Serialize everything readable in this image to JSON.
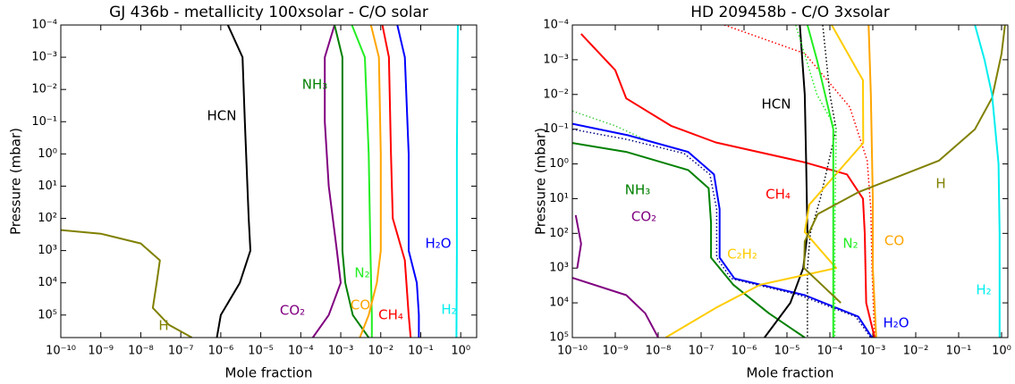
{
  "chart_data": [
    {
      "type": "line",
      "title": "GJ 436b - metallicity 100xsolar - C/O solar",
      "xlabel": "Mole fraction",
      "ylabel": "Pressure (mbar)",
      "xscale": "log",
      "yscale": "log",
      "y_inverted": true,
      "xlim": [
        1e-10,
        2.5
      ],
      "ylim": [
        0.0001,
        500000
      ],
      "xticks": [
        {
          "value": 1e-10,
          "label": "10⁻¹⁰"
        },
        {
          "value": 1e-09,
          "label": "10⁻⁹"
        },
        {
          "value": 1e-08,
          "label": "10⁻⁸"
        },
        {
          "value": 1e-07,
          "label": "10⁻⁷"
        },
        {
          "value": 1e-06,
          "label": "10⁻⁶"
        },
        {
          "value": 1e-05,
          "label": "10⁻⁵"
        },
        {
          "value": 0.0001,
          "label": "10⁻⁴"
        },
        {
          "value": 0.001,
          "label": "10⁻³"
        },
        {
          "value": 0.01,
          "label": "10⁻²"
        },
        {
          "value": 0.1,
          "label": "10⁻¹"
        },
        {
          "value": 1,
          "label": "10⁰"
        }
      ],
      "yticks": [
        {
          "value": 0.0001,
          "label": "10⁻⁴"
        },
        {
          "value": 0.001,
          "label": "10⁻³"
        },
        {
          "value": 0.01,
          "label": "10⁻²"
        },
        {
          "value": 0.1,
          "label": "10⁻¹"
        },
        {
          "value": 1,
          "label": "10⁰"
        },
        {
          "value": 10,
          "label": "10¹"
        },
        {
          "value": 100,
          "label": "10²"
        },
        {
          "value": 1000,
          "label": "10³"
        },
        {
          "value": 10000,
          "label": "10⁴"
        },
        {
          "value": 100000,
          "label": "10⁵"
        }
      ],
      "series": [
        {
          "name": "H",
          "color": "#808000",
          "x": [
            1e-10,
            1e-09,
            1e-08,
            3e-08,
            2.5e-08,
            2e-08,
            5e-08,
            1.9e-07
          ],
          "values": [
            230,
            300,
            600,
            2000,
            10000,
            60000,
            200000,
            500000
          ]
        },
        {
          "name": "HCN",
          "color": "#000000",
          "x": [
            1.5e-06,
            3.5e-06,
            4e-06,
            5e-06,
            5.5e-06,
            3e-06,
            1e-06,
            8e-07
          ],
          "values": [
            0.0001,
            0.001,
            0.1,
            100,
            1000,
            10000,
            100000,
            500000
          ]
        },
        {
          "name": "CO₂",
          "color": "#800080",
          "x": [
            0.0007,
            0.0004,
            0.0004,
            0.0005,
            0.0008,
            0.001,
            0.0005,
            0.0002
          ],
          "values": [
            0.0001,
            0.001,
            0.1,
            10,
            1000,
            10000,
            100000,
            500000
          ]
        },
        {
          "name": "NH₃",
          "color": "#008000",
          "x": [
            0.0007,
            0.0011,
            0.0011,
            0.0011,
            0.0013,
            0.002,
            0.005
          ],
          "values": [
            0.0001,
            0.001,
            1,
            1000,
            10000,
            100000,
            500000
          ]
        },
        {
          "name": "N₂",
          "color": "#22ee22",
          "x": [
            0.0019,
            0.004,
            0.005,
            0.0055,
            0.006,
            0.006
          ],
          "values": [
            0.0001,
            0.001,
            1,
            1000,
            100000,
            500000
          ]
        },
        {
          "name": "CO",
          "color": "#ffa500",
          "x": [
            0.0057,
            0.009,
            0.01,
            0.01,
            0.008,
            0.005,
            0.003
          ],
          "values": [
            0.0001,
            0.001,
            1,
            1000,
            10000,
            100000,
            500000
          ]
        },
        {
          "name": "CH₄",
          "color": "#ff0000",
          "x": [
            0.011,
            0.016,
            0.018,
            0.02,
            0.04,
            0.05,
            0.056
          ],
          "values": [
            0.0001,
            0.001,
            1,
            100,
            2000,
            100000,
            500000
          ]
        },
        {
          "name": "H₂O",
          "color": "#0000ff",
          "x": [
            0.026,
            0.04,
            0.05,
            0.05,
            0.08,
            0.09,
            0.09
          ],
          "values": [
            0.0001,
            0.001,
            1,
            1000,
            10000,
            100000,
            500000
          ]
        },
        {
          "name": "H₂",
          "color": "#00eeee",
          "x": [
            0.85,
            0.8,
            0.8,
            0.78
          ],
          "values": [
            0.0001,
            1,
            1000,
            500000
          ]
        }
      ]
    },
    {
      "type": "line",
      "title": "HD 209458b - C/O  3xsolar",
      "xlabel": "Mole fraction",
      "ylabel": "Pressure (mbar)",
      "xscale": "log",
      "yscale": "log",
      "y_inverted": true,
      "xlim": [
        1e-10,
        1.4
      ],
      "ylim": [
        0.0001,
        100000
      ],
      "xticks": [
        {
          "value": 1e-10,
          "label": "10⁻¹⁰"
        },
        {
          "value": 1e-09,
          "label": "10⁻⁹"
        },
        {
          "value": 1e-08,
          "label": "10⁻⁸"
        },
        {
          "value": 1e-07,
          "label": "10⁻⁷"
        },
        {
          "value": 1e-06,
          "label": "10⁻⁶"
        },
        {
          "value": 1e-05,
          "label": "10⁻⁵"
        },
        {
          "value": 0.0001,
          "label": "10⁻⁴"
        },
        {
          "value": 0.001,
          "label": "10⁻³"
        },
        {
          "value": 0.01,
          "label": "10⁻²"
        },
        {
          "value": 0.1,
          "label": "10⁻¹"
        },
        {
          "value": 1,
          "label": "10⁰"
        }
      ],
      "yticks": [
        {
          "value": 0.0001,
          "label": "10⁻⁴"
        },
        {
          "value": 0.001,
          "label": "10⁻³"
        },
        {
          "value": 0.01,
          "label": "10⁻²"
        },
        {
          "value": 0.1,
          "label": "10⁻¹"
        },
        {
          "value": 1,
          "label": "10⁰"
        },
        {
          "value": 10,
          "label": "10¹"
        },
        {
          "value": 100,
          "label": "10²"
        },
        {
          "value": 1000,
          "label": "10³"
        },
        {
          "value": 10000,
          "label": "10⁴"
        },
        {
          "value": 100000,
          "label": "10⁵"
        }
      ],
      "series": [
        {
          "name": "CO₂",
          "color": "#800080",
          "x": [
            1.2e-10,
            1.6e-10,
            1.3e-10,
            null,
            1e-10,
            1.8e-09,
            5e-09,
            1e-08
          ],
          "values": [
            30,
            200,
            1000,
            null,
            1900,
            6000,
            20000,
            100000
          ]
        },
        {
          "name": "NH₃",
          "color": "#008000",
          "x": [
            1e-10,
            1.8e-09,
            5e-08,
            1.5e-07,
            1.7e-07,
            1.7e-07,
            5.6e-07,
            3.8e-06,
            2.6e-05
          ],
          "values": [
            0.25,
            0.45,
            1.5,
            5,
            50,
            500,
            3000,
            20000,
            100000
          ]
        },
        {
          "color": "#44cc44",
          "dash": "dotted",
          "x": [
            1e-10,
            1e-09,
            5e-09
          ],
          "values": [
            0.03,
            0.08,
            0.2
          ]
        },
        {
          "name": "H₂O",
          "color": "#0000ff",
          "x": [
            1e-10,
            2e-09,
            5e-08,
            2e-07,
            2.7e-07,
            2.7e-07,
            6e-07,
            2.6e-05,
            0.00046,
            0.00096
          ],
          "values": [
            0.07,
            0.15,
            0.45,
            2,
            20,
            500,
            2000,
            6000,
            25000,
            100000
          ]
        },
        {
          "color": "#000080",
          "dash": "dotted",
          "x": [
            1e-10,
            2e-09,
            4e-08,
            1.6e-07,
            2.3e-07,
            2.3e-07,
            5e-07,
            2e-05,
            0.0004,
            0.0009
          ],
          "values": [
            0.1,
            0.2,
            0.5,
            2,
            20,
            500,
            2000,
            6000,
            25000,
            100000
          ]
        },
        {
          "name": "CH₄",
          "color": "#ff0000",
          "x": [
            1.6e-10,
            1e-09,
            1.8e-09,
            2e-08,
            2.2e-07,
            2.6e-05,
            0.00025,
            0.00059,
            0.00065,
            0.0007,
            0.0011
          ],
          "values": [
            0.00018,
            0.002,
            0.013,
            0.08,
            0.24,
            0.9,
            2,
            10,
            100,
            10000,
            100000
          ]
        },
        {
          "color": "#ff0000",
          "dash": "dotted",
          "x": [
            3.5e-07,
            2.6e-05,
            0.00029,
            0.00074,
            0.0009,
            0.00096,
            0.0011
          ],
          "values": [
            0.0001,
            0.00066,
            0.023,
            0.8,
            20,
            1000,
            100000
          ]
        },
        {
          "name": "HCN",
          "color": "#000000",
          "x": [
            2e-05,
            2.6e-05,
            2.8e-05,
            3e-05,
            2.4e-05,
            1.2e-05,
            3e-06
          ],
          "values": [
            0.0001,
            0.01,
            1,
            100,
            1000,
            10000,
            100000
          ]
        },
        {
          "color": "#000000",
          "dash": "dotted",
          "x": [
            6.8e-05,
            0.0001,
            0.00014,
            6e-05,
            3.5e-05,
            3e-05,
            3e-05
          ],
          "values": [
            0.0001,
            0.01,
            0.1,
            10,
            100,
            1000,
            100000
          ]
        },
        {
          "name": "C₂H₂",
          "color": "#ffcc00",
          "x": [
            0.00011,
            0.00059,
            0.0006,
            3.3e-05,
            2.6e-05,
            6e-05,
            0.00014,
            2.4e-06,
            2.2e-07,
            1.5e-08
          ],
          "values": [
            0.0001,
            0.0039,
            0.25,
            15,
            91,
            300,
            1000,
            3000,
            14000,
            100000
          ]
        },
        {
          "name": "N₂",
          "color": "#22ee22",
          "x": [
            3e-05,
            5e-05,
            0.00012,
            0.00012,
            0.00012
          ],
          "values": [
            0.0001,
            0.001,
            0.1,
            100,
            100000
          ]
        },
        {
          "color": "#22ee22",
          "dash": "dotted",
          "x": [
            1.6e-05,
            5e-05,
            0.00014,
            0.00013,
            0.00013
          ],
          "values": [
            0.0001,
            0.01,
            0.1,
            100,
            100000
          ]
        },
        {
          "name": "CO",
          "color": "#ffa500",
          "x": [
            0.0008,
            0.0009,
            0.001,
            0.001,
            0.0012
          ],
          "values": [
            0.0001,
            0.01,
            10,
            1000,
            100000
          ]
        },
        {
          "name": "H",
          "color": "#808000",
          "x": [
            0.00018,
            2.5e-05,
            2.6e-05,
            5.2e-05,
            0.00046,
            0.035,
            0.24,
            0.6,
            1,
            1.2
          ],
          "values": [
            10000,
            1000,
            170,
            28,
            6.5,
            0.8,
            0.1,
            0.0126,
            0.00066,
            0.0001
          ]
        },
        {
          "name": "H₂",
          "color": "#00eeee",
          "x": [
            0.24,
            0.4,
            0.6,
            0.85,
            0.9,
            0.9
          ],
          "values": [
            0.0001,
            0.001,
            0.01,
            1,
            100,
            100000
          ]
        }
      ]
    }
  ]
}
